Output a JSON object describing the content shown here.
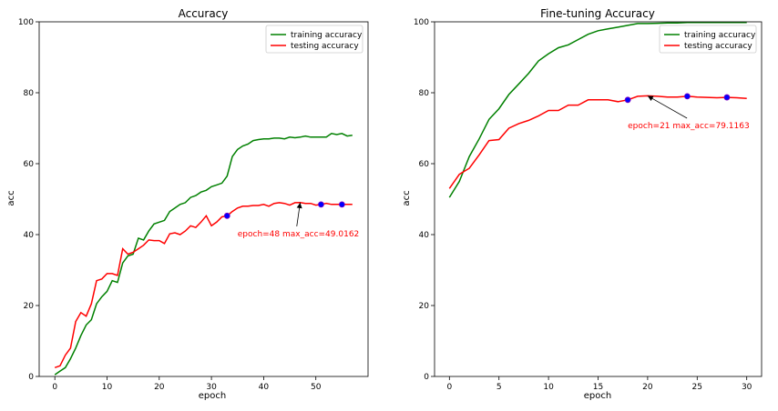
{
  "chart_data": [
    {
      "type": "line",
      "title": "Accuracy",
      "xlabel": "epoch",
      "ylabel": "acc",
      "xlim": [
        -3,
        60
      ],
      "ylim": [
        0,
        100
      ],
      "xticks": [
        0,
        10,
        20,
        30,
        40,
        50
      ],
      "yticks": [
        0,
        20,
        40,
        60,
        80,
        100
      ],
      "legend": "top-right",
      "series": [
        {
          "name": "training accuracy",
          "color": "#008000",
          "x": [
            0,
            1,
            2,
            3,
            4,
            5,
            6,
            7,
            8,
            9,
            10,
            11,
            12,
            13,
            14,
            15,
            16,
            17,
            18,
            19,
            20,
            21,
            22,
            23,
            24,
            25,
            26,
            27,
            28,
            29,
            30,
            31,
            32,
            33,
            34,
            35,
            36,
            37,
            38,
            39,
            40,
            41,
            42,
            43,
            44,
            45,
            46,
            47,
            48,
            49,
            50,
            51,
            52,
            53,
            54,
            55,
            56,
            57
          ],
          "values": [
            0.5,
            1.5,
            2.5,
            5,
            8,
            11.5,
            14.5,
            16,
            20.5,
            22.5,
            24,
            27,
            26.5,
            32,
            34,
            34.5,
            39,
            38.5,
            41,
            43,
            43.5,
            44,
            46.5,
            47.5,
            48.5,
            49,
            50.5,
            51,
            52,
            52.5,
            53.5,
            54,
            54.5,
            56.5,
            62,
            64,
            65,
            65.5,
            66.5,
            66.8,
            67,
            67,
            67.2,
            67.2,
            67,
            67.5,
            67.3,
            67.5,
            67.8,
            67.5,
            67.5,
            67.5,
            67.5,
            68.5,
            68.2,
            68.5,
            67.8,
            68
          ]
        },
        {
          "name": "testing accuracy",
          "color": "#ff0000",
          "x": [
            0,
            1,
            2,
            3,
            4,
            5,
            6,
            7,
            8,
            9,
            10,
            11,
            12,
            13,
            14,
            15,
            16,
            17,
            18,
            19,
            20,
            21,
            22,
            23,
            24,
            25,
            26,
            27,
            28,
            29,
            30,
            31,
            32,
            33,
            34,
            35,
            36,
            37,
            38,
            39,
            40,
            41,
            42,
            43,
            44,
            45,
            46,
            47,
            48,
            49,
            50,
            51,
            52,
            53,
            54,
            55,
            56,
            57
          ],
          "values": [
            2.5,
            3,
            6,
            8,
            15.5,
            18,
            17,
            20.5,
            27,
            27.5,
            29,
            29,
            28.5,
            36,
            34.5,
            35,
            36,
            37,
            38.5,
            38.3,
            38.3,
            37.5,
            40.2,
            40.5,
            40,
            41,
            42.5,
            42,
            43.5,
            45.3,
            42.5,
            43.5,
            45,
            45.3,
            46.5,
            47.5,
            48,
            48,
            48.2,
            48.2,
            48.5,
            48,
            48.8,
            49,
            48.8,
            48.3,
            49,
            49.0162,
            48.8,
            48.8,
            48.3,
            48.5,
            48.8,
            48.5,
            48.5,
            48.5,
            48.5,
            48.5
          ]
        }
      ],
      "markers": [
        {
          "x": 33,
          "y": 45.3
        },
        {
          "x": 51,
          "y": 48.5
        },
        {
          "x": 55,
          "y": 48.5
        }
      ],
      "annotation": {
        "text": "epoch=48 max_acc=49.0162",
        "target_x": 47,
        "target_y": 49.0162,
        "text_x": 35,
        "text_y": 39.5
      }
    },
    {
      "type": "line",
      "title": "Fine-tuning Accuracy",
      "xlabel": "epoch",
      "ylabel": "acc",
      "xlim": [
        -1.5,
        31.5
      ],
      "ylim": [
        0,
        100
      ],
      "xticks": [
        0,
        5,
        10,
        15,
        20,
        25,
        30
      ],
      "yticks": [
        0,
        20,
        40,
        60,
        80,
        100
      ],
      "legend": "top-right",
      "series": [
        {
          "name": "training accuracy",
          "color": "#008000",
          "x": [
            0,
            1,
            2,
            3,
            4,
            5,
            6,
            7,
            8,
            9,
            10,
            11,
            12,
            13,
            14,
            15,
            16,
            17,
            18,
            19,
            20,
            21,
            22,
            23,
            24,
            25,
            26,
            27,
            28,
            29,
            30
          ],
          "values": [
            50.5,
            55,
            62,
            67,
            72.5,
            75.5,
            79.5,
            82.5,
            85.5,
            89,
            91,
            92.7,
            93.5,
            95,
            96.5,
            97.5,
            98,
            98.5,
            99,
            99.5,
            99.5,
            99.6,
            99.7,
            99.7,
            99.8,
            99.8,
            99.8,
            99.8,
            99.8,
            99.8,
            99.8
          ]
        },
        {
          "name": "testing accuracy",
          "color": "#ff0000",
          "x": [
            0,
            1,
            2,
            3,
            4,
            5,
            6,
            7,
            8,
            9,
            10,
            11,
            12,
            13,
            14,
            15,
            16,
            17,
            18,
            19,
            20,
            21,
            22,
            23,
            24,
            25,
            26,
            27,
            28,
            29,
            30
          ],
          "values": [
            53,
            57,
            58.7,
            62.5,
            66.5,
            66.8,
            70,
            71.3,
            72.2,
            73.5,
            75,
            75,
            76.5,
            76.5,
            78,
            78,
            78,
            77.5,
            78,
            79,
            79.1163,
            79,
            78.8,
            78.8,
            79,
            78.8,
            78.7,
            78.6,
            78.7,
            78.6,
            78.4
          ]
        }
      ],
      "markers": [
        {
          "x": 18,
          "y": 78
        },
        {
          "x": 24,
          "y": 79
        },
        {
          "x": 28,
          "y": 78.7
        }
      ],
      "annotation": {
        "text": "epoch=21 max_acc=79.1163",
        "target_x": 20,
        "target_y": 79.1163,
        "text_x": 18,
        "text_y": 70
      }
    }
  ]
}
